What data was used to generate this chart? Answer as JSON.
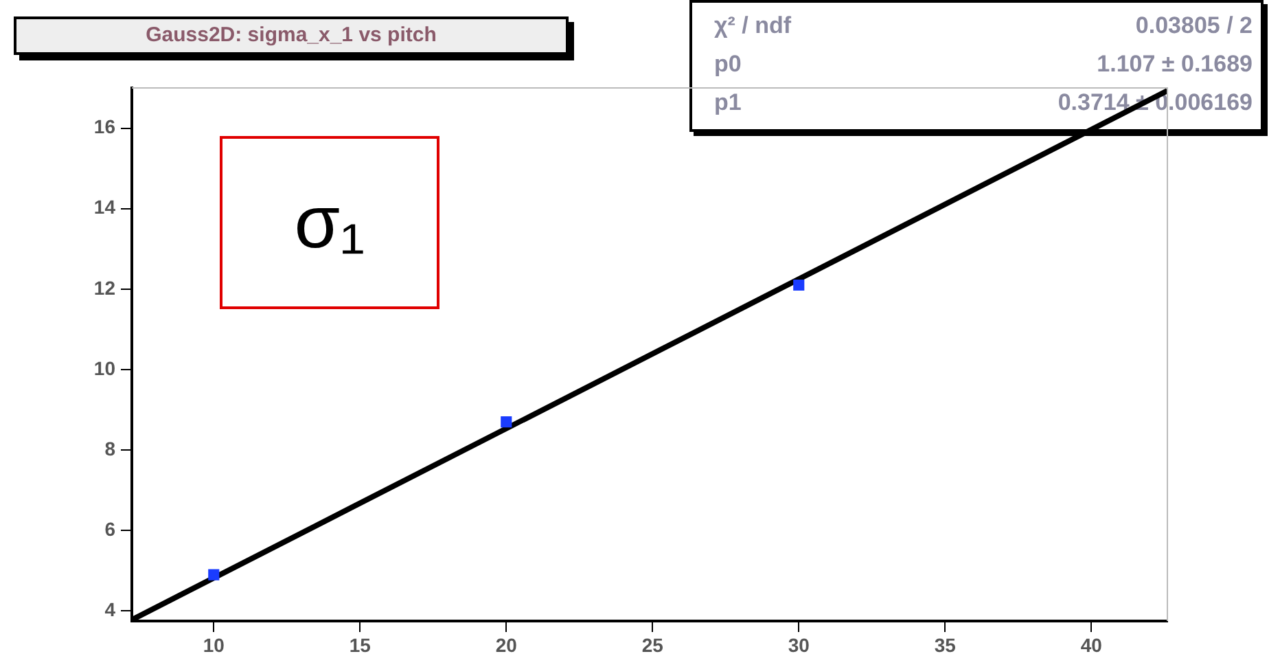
{
  "chart_data": {
    "type": "scatter",
    "title": "Gauss2D: sigma_x_1 vs pitch",
    "annotations": [
      "σ₁",
      "χ² / ndf",
      "0.03805 / 2",
      "p0",
      "1.107 ± 0.1689",
      "p1",
      "0.3714 ± 0.006169"
    ],
    "series": [
      {
        "type": "scatter",
        "color": "#1a3cff",
        "marker": "square",
        "x": [
          10,
          20,
          30
        ],
        "values": [
          4.9,
          8.7,
          12.1
        ]
      },
      {
        "type": "line",
        "color": "#000000",
        "marker": "none",
        "line_style": "solid",
        "x": [
          7.2,
          42.6
        ],
        "values": [
          3.78,
          16.93
        ]
      }
    ],
    "xlim": [
      7.2,
      42.6
    ],
    "xticks": [
      10,
      15,
      20,
      25,
      30,
      35,
      40
    ],
    "ylim": [
      3.75,
      17
    ],
    "yticks": [
      4,
      6,
      8,
      10,
      12,
      14,
      16
    ],
    "grid": false,
    "legend": false
  }
}
